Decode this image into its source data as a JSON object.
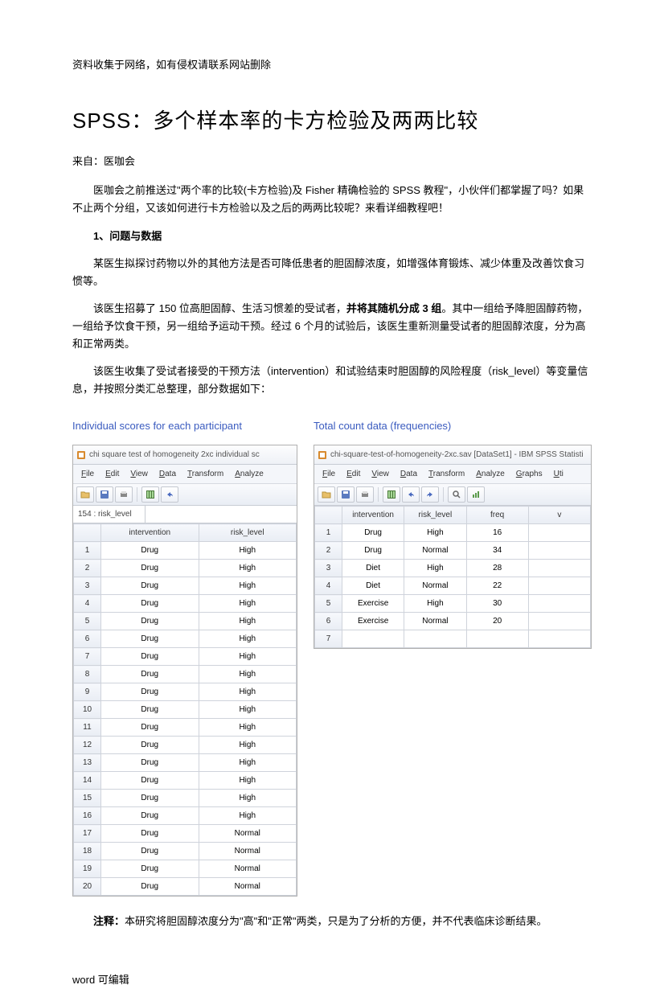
{
  "header_note": "资料收集于网络，如有侵权请联系网站删除",
  "title": "SPSS：多个样本率的卡方检验及两两比较",
  "source": "来自：医咖会",
  "para1": "医咖会之前推送过\"两个率的比较(卡方检验)及 Fisher 精确检验的 SPSS 教程\"，小伙伴们都掌握了吗？如果不止两个分组，又该如何进行卡方检验以及之后的两两比较呢？来看详细教程吧！",
  "section1": "1、问题与数据",
  "para2": "某医生拟探讨药物以外的其他方法是否可降低患者的胆固醇浓度，如增强体育锻炼、减少体重及改善饮食习惯等。",
  "para3_a": "该医生招募了 150 位高胆固醇、生活习惯差的受试者，",
  "para3_b": "并将其随机分成 3 组",
  "para3_c": "。其中一组给予降胆固醇药物，一组给予饮食干预，另一组给予运动干预。经过 6 个月的试验后，该医生重新测量受试者的胆固醇浓度，分为高和正常两类。",
  "para4": "该医生收集了受试者接受的干预方法（intervention）和试验结束时胆固醇的风险程度（risk_level）等变量信息，并按照分类汇总整理，部分数据如下：",
  "shot1_title": "Individual scores for each participant",
  "shot2_title": "Total count data (frequencies)",
  "window1": {
    "title_text": "chi square test of homogeneity 2xc individual sc",
    "menus": [
      "File",
      "Edit",
      "View",
      "Data",
      "Transform",
      "Analyze"
    ],
    "cell_label": "154 : risk_level",
    "columns": [
      "intervention",
      "risk_level"
    ],
    "rows": [
      [
        "1",
        "Drug",
        "High"
      ],
      [
        "2",
        "Drug",
        "High"
      ],
      [
        "3",
        "Drug",
        "High"
      ],
      [
        "4",
        "Drug",
        "High"
      ],
      [
        "5",
        "Drug",
        "High"
      ],
      [
        "6",
        "Drug",
        "High"
      ],
      [
        "7",
        "Drug",
        "High"
      ],
      [
        "8",
        "Drug",
        "High"
      ],
      [
        "9",
        "Drug",
        "High"
      ],
      [
        "10",
        "Drug",
        "High"
      ],
      [
        "11",
        "Drug",
        "High"
      ],
      [
        "12",
        "Drug",
        "High"
      ],
      [
        "13",
        "Drug",
        "High"
      ],
      [
        "14",
        "Drug",
        "High"
      ],
      [
        "15",
        "Drug",
        "High"
      ],
      [
        "16",
        "Drug",
        "High"
      ],
      [
        "17",
        "Drug",
        "Normal"
      ],
      [
        "18",
        "Drug",
        "Normal"
      ],
      [
        "19",
        "Drug",
        "Normal"
      ],
      [
        "20",
        "Drug",
        "Normal"
      ]
    ]
  },
  "window2": {
    "title_text": "chi-square-test-of-homogeneity-2xc.sav [DataSet1] - IBM SPSS Statisti",
    "menus": [
      "File",
      "Edit",
      "View",
      "Data",
      "Transform",
      "Analyze",
      "Graphs",
      "Uti"
    ],
    "columns": [
      "intervention",
      "risk_level",
      "freq",
      "v"
    ],
    "rows": [
      [
        "1",
        "Drug",
        "High",
        "16",
        ""
      ],
      [
        "2",
        "Drug",
        "Normal",
        "34",
        ""
      ],
      [
        "3",
        "Diet",
        "High",
        "28",
        ""
      ],
      [
        "4",
        "Diet",
        "Normal",
        "22",
        ""
      ],
      [
        "5",
        "Exercise",
        "High",
        "30",
        ""
      ],
      [
        "6",
        "Exercise",
        "Normal",
        "20",
        ""
      ],
      [
        "7",
        "",
        "",
        "",
        ""
      ]
    ]
  },
  "note_label": "注释：",
  "note_text": "本研究将胆固醇浓度分为\"高\"和\"正常\"两类，只是为了分析的方便，并不代表临床诊断结果。",
  "footer": "word 可编辑",
  "colors": {
    "link_blue": "#3a5bbf",
    "grid_border": "#cfd3db",
    "header_grad_top": "#f6f8fc",
    "header_grad_bot": "#e9edf4"
  }
}
